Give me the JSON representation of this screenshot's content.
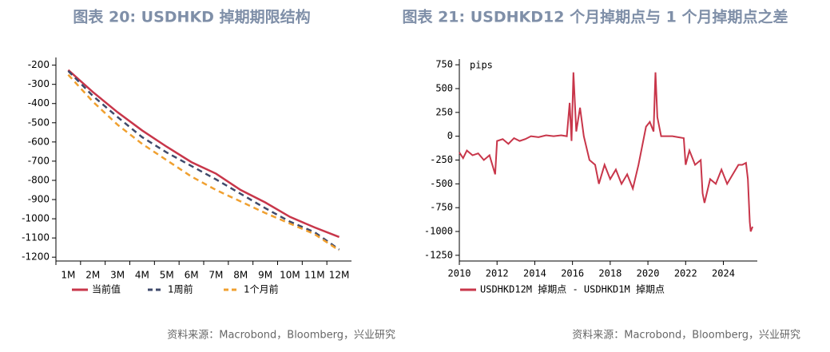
{
  "chart_data": [
    {
      "type": "line",
      "title": "图表 20: USDHKD 掉期期限结构",
      "categories": [
        "1M",
        "2M",
        "3M",
        "4M",
        "5M",
        "6M",
        "7M",
        "8M",
        "9M",
        "10M",
        "11M",
        "12M"
      ],
      "series": [
        {
          "name": "当前值",
          "color": "#c8364a",
          "dash": false,
          "values": [
            -225,
            -340,
            -445,
            -540,
            -625,
            -705,
            -765,
            -850,
            -915,
            -990,
            -1045,
            -1095
          ]
        },
        {
          "name": "1周前",
          "color": "#3f4a6b",
          "dash": true,
          "values": [
            -230,
            -360,
            -470,
            -575,
            -655,
            -725,
            -795,
            -870,
            -945,
            -1015,
            -1070,
            -1160
          ]
        },
        {
          "name": "1个月前",
          "color": "#f0a030",
          "dash": true,
          "values": [
            -250,
            -390,
            -510,
            -610,
            -695,
            -780,
            -850,
            -910,
            -970,
            -1025,
            -1080,
            -1165
          ]
        }
      ],
      "ylim": [
        -1220,
        -160
      ],
      "yticks": [
        -200,
        -300,
        -400,
        -500,
        -600,
        -700,
        -800,
        -900,
        -1000,
        -1100,
        -1200
      ],
      "source": "资料来源：Macrobond，Bloomberg，兴业研究"
    },
    {
      "type": "timeseries",
      "title": "图表 21: USDHKD12 个月掉期点与 1 个月掉期点之差",
      "annotation": "pips",
      "x": [
        2010.0,
        2010.2,
        2010.4,
        2010.7,
        2011.0,
        2011.3,
        2011.6,
        2011.9,
        2012.0,
        2012.3,
        2012.6,
        2012.9,
        2013.2,
        2013.5,
        2013.8,
        2014.2,
        2014.6,
        2015.0,
        2015.4,
        2015.7,
        2015.85,
        2015.95,
        2016.05,
        2016.2,
        2016.4,
        2016.6,
        2016.9,
        2017.2,
        2017.4,
        2017.7,
        2018.0,
        2018.3,
        2018.6,
        2018.9,
        2019.2,
        2019.5,
        2019.7,
        2019.9,
        2020.1,
        2020.3,
        2020.4,
        2020.5,
        2020.7,
        2021.0,
        2021.3,
        2021.6,
        2021.9,
        2022.0,
        2022.2,
        2022.5,
        2022.8,
        2022.9,
        2023.0,
        2023.3,
        2023.6,
        2023.9,
        2024.2,
        2024.5,
        2024.8,
        2025.0,
        2025.2,
        2025.3,
        2025.4,
        2025.45,
        2025.55
      ],
      "series": [
        {
          "name": "USDHKD12M 掉期点 - USDHKD1M 掉期点",
          "color": "#c8364a",
          "values": [
            -170,
            -230,
            -150,
            -200,
            -180,
            -250,
            -200,
            -400,
            -50,
            -30,
            -80,
            -20,
            -50,
            -30,
            0,
            -10,
            10,
            0,
            10,
            0,
            350,
            -50,
            670,
            50,
            300,
            0,
            -250,
            -300,
            -500,
            -300,
            -450,
            -350,
            -500,
            -400,
            -550,
            -300,
            -100,
            100,
            150,
            50,
            670,
            200,
            0,
            0,
            0,
            -10,
            -20,
            -300,
            -150,
            -300,
            -250,
            -600,
            -700,
            -450,
            -500,
            -350,
            -500,
            -400,
            -300,
            -300,
            -280,
            -450,
            -900,
            -1000,
            -950
          ]
        }
      ],
      "xlim": [
        2010,
        2025.8
      ],
      "xticks": [
        2010,
        2012,
        2014,
        2016,
        2018,
        2020,
        2022,
        2024
      ],
      "ylim": [
        -1310,
        810
      ],
      "yticks": [
        750,
        500,
        250,
        0,
        -250,
        -500,
        -750,
        -1000,
        -1250
      ],
      "source": "资料来源：Macrobond，Bloomberg，兴业研究"
    }
  ]
}
